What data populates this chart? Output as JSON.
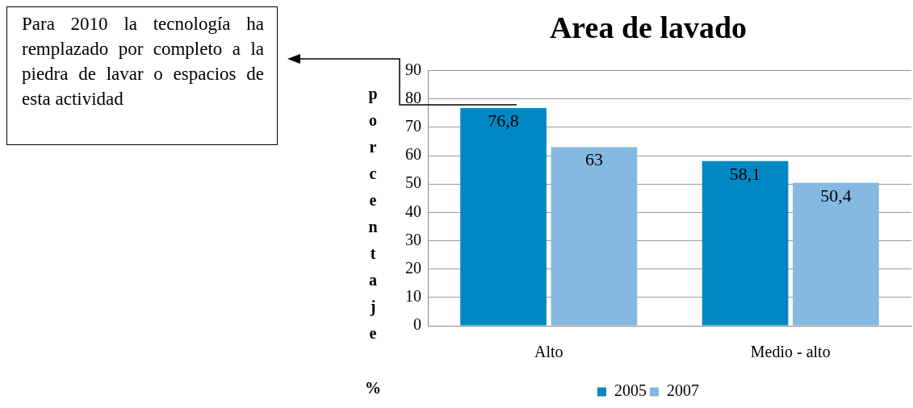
{
  "chart_data": {
    "type": "bar",
    "title": "Area de lavado",
    "ylabel": "porcentaje %",
    "categories": [
      "Alto",
      "Medio - alto"
    ],
    "series": [
      {
        "name": "2005",
        "color": "#0088c4",
        "values": [
          76.8,
          58.1
        ],
        "value_labels": [
          "76,8",
          "58,1"
        ]
      },
      {
        "name": "2007",
        "color": "#85b8e0",
        "values": [
          63,
          50.4
        ],
        "value_labels": [
          "63",
          "50,4"
        ]
      }
    ],
    "ylim": [
      0,
      90
    ],
    "yticks": [
      0,
      10,
      20,
      30,
      40,
      50,
      60,
      70,
      80,
      90
    ],
    "grid": "y",
    "legend": "bottom",
    "annotations": [
      "Para 2010 la tecnología ha remplazado por completo a la piedra de lavar o espacios de esta actividad"
    ]
  }
}
